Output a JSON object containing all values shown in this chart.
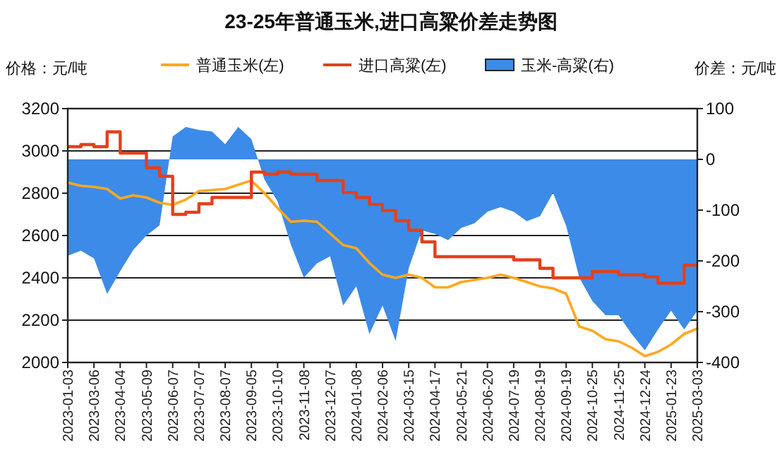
{
  "chart_data": {
    "type": "line",
    "title": "23-25年普通玉米,进口高粱价差走势图",
    "ylabel": "价格：元/吨",
    "y2label": "价差：元/吨",
    "categories": [
      "2023-01-03",
      null,
      "2023-03-06",
      null,
      "2023-04-04",
      null,
      "2023-05-09",
      null,
      "2023-06-07",
      null,
      "2023-07-07",
      null,
      "2023-08-07",
      null,
      "2023-09-05",
      null,
      "2023-10-10",
      null,
      "2023-11-08",
      null,
      "2023-12-07",
      null,
      "2024-01-08",
      null,
      "2024-02-06",
      null,
      "2024-03-15",
      null,
      "2024-04-17",
      null,
      "2024-05-21",
      null,
      "2024-06-20",
      null,
      "2024-07-19",
      null,
      "2024-08-19",
      null,
      "2024-09-19",
      null,
      "2024-10-25",
      null,
      "2024-11-25",
      null,
      "2024-12-24",
      null,
      "2025-01-23",
      null,
      "2025-03-03"
    ],
    "series": [
      {
        "name": "普通玉米(左)",
        "type": "line",
        "color": "#ffa820",
        "values": [
          2850,
          2835,
          2830,
          2820,
          2775,
          2790,
          2780,
          2755,
          2745,
          2770,
          2810,
          2815,
          2820,
          2840,
          2860,
          2800,
          2730,
          2665,
          2670,
          2665,
          2610,
          2555,
          2540,
          2470,
          2415,
          2400,
          2415,
          2400,
          2355,
          2355,
          2380,
          2390,
          2400,
          2415,
          2400,
          2380,
          2360,
          2350,
          2325,
          2170,
          2150,
          2110,
          2100,
          2070,
          2030,
          2050,
          2085,
          2135,
          2160
        ]
      },
      {
        "name": "进口高粱(左)",
        "type": "step",
        "color": "#e4401a",
        "values": [
          3020,
          3030,
          3020,
          3090,
          2990,
          2990,
          2920,
          2880,
          2700,
          2710,
          2750,
          2780,
          2780,
          2780,
          2900,
          2890,
          2900,
          2890,
          2890,
          2860,
          2860,
          2803,
          2780,
          2747,
          2718,
          2670,
          2625,
          2570,
          2500,
          2500,
          2500,
          2500,
          2500,
          2500,
          2485,
          2485,
          2445,
          2400,
          2400,
          2400,
          2430,
          2430,
          2415,
          2415,
          2405,
          2375,
          2375,
          2460,
          2460
        ]
      },
      {
        "name": "玉米-高粱(右)",
        "type": "area",
        "axis": "y2",
        "color": "#3d8be8",
        "values": [
          -190,
          -180,
          -195,
          -265,
          -220,
          -178,
          -150,
          -130,
          45,
          64,
          58,
          55,
          30,
          64,
          40,
          -40,
          -83,
          -167,
          -233,
          -205,
          -191,
          -288,
          -250,
          -344,
          -288,
          -358,
          -214,
          -140,
          -147,
          -159,
          -135,
          -126,
          -103,
          -94,
          -103,
          -122,
          -112,
          -66,
          -131,
          -233,
          -279,
          -307,
          -307,
          -344,
          -376,
          -335,
          -298,
          -335,
          -298
        ]
      }
    ],
    "ylim": [
      2000,
      3200
    ],
    "yticks": [
      2000,
      2200,
      2400,
      2600,
      2800,
      3000,
      3200
    ],
    "y2lim": [
      -400,
      100
    ],
    "y2ticks": [
      -400,
      -300,
      -200,
      -100,
      0,
      100
    ],
    "grid": "y",
    "legend": "top"
  }
}
